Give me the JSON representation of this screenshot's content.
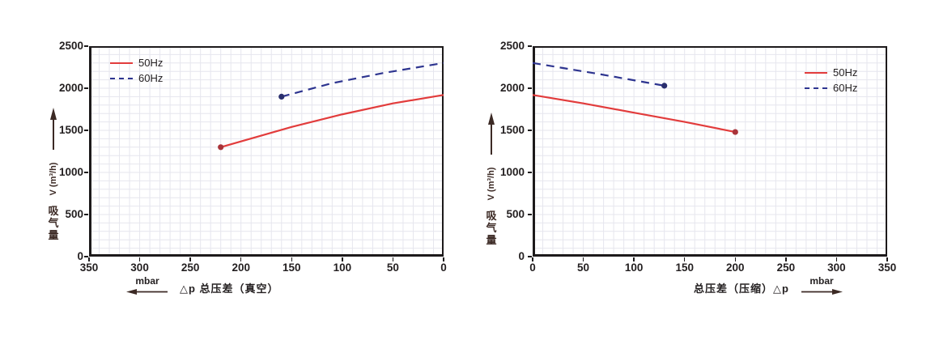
{
  "colors": {
    "red": "#e23c3c",
    "red_dot": "#a9343a",
    "navy": "#2e3590",
    "navy_dot": "#2a2f6e",
    "grid": "#e6e6ee",
    "axis": "#1d1a1b",
    "text": "#231f20",
    "arrow": "#3c2a25"
  },
  "legend": {
    "items": [
      {
        "label": "50Hz",
        "style": "solid",
        "color": "#e23c3c"
      },
      {
        "label": "60Hz",
        "style": "dashed",
        "color": "#2e3590"
      }
    ]
  },
  "chart_data": [
    {
      "type": "line",
      "title": "",
      "xlabel": "△p  总压差（真空）",
      "x_unit": "mbar",
      "x_arrow": "left",
      "ylabel": "吸气量 V (m³/h)",
      "ylabel_latin": "V (m³/h)",
      "ylabel_chars": [
        "吸",
        "气",
        "量"
      ],
      "xlim": [
        350,
        0
      ],
      "ylim": [
        0,
        2500
      ],
      "x_ticks": [
        350,
        300,
        250,
        200,
        150,
        100,
        50,
        0
      ],
      "y_ticks": [
        0,
        500,
        1000,
        1500,
        2000,
        2500
      ],
      "minor_step_x": 10,
      "minor_step_y": 100,
      "grid": true,
      "legend_position": "top-left",
      "series": [
        {
          "name": "50Hz",
          "color_key": "red",
          "style": "solid",
          "marker": "start",
          "points": [
            [
              220,
              1300
            ],
            [
              150,
              1540
            ],
            [
              100,
              1690
            ],
            [
              50,
              1820
            ],
            [
              0,
              1920
            ]
          ]
        },
        {
          "name": "60Hz",
          "color_key": "navy",
          "style": "dashed",
          "marker": "start",
          "points": [
            [
              160,
              1900
            ],
            [
              110,
              2060
            ],
            [
              60,
              2180
            ],
            [
              0,
              2300
            ]
          ]
        }
      ]
    },
    {
      "type": "line",
      "title": "",
      "xlabel": "总压差（压缩）△p",
      "x_unit": "mbar",
      "x_arrow": "right",
      "ylabel": "吸气量 V (m³/h)",
      "ylabel_latin": "V (m³/h)",
      "ylabel_chars": [
        "吸",
        "气",
        "量"
      ],
      "xlim": [
        0,
        350
      ],
      "ylim": [
        0,
        2500
      ],
      "x_ticks": [
        0,
        50,
        100,
        150,
        200,
        250,
        300,
        350
      ],
      "y_ticks": [
        0,
        500,
        1000,
        1500,
        2000,
        2500
      ],
      "minor_step_x": 10,
      "minor_step_y": 100,
      "grid": true,
      "legend_position": "top-right",
      "series": [
        {
          "name": "50Hz",
          "color_key": "red",
          "style": "solid",
          "marker": "end",
          "points": [
            [
              0,
              1920
            ],
            [
              50,
              1820
            ],
            [
              100,
              1710
            ],
            [
              150,
              1600
            ],
            [
              200,
              1480
            ]
          ]
        },
        {
          "name": "60Hz",
          "color_key": "navy",
          "style": "dashed",
          "marker": "end",
          "points": [
            [
              0,
              2300
            ],
            [
              65,
              2170
            ],
            [
              130,
              2030
            ]
          ]
        }
      ]
    }
  ]
}
